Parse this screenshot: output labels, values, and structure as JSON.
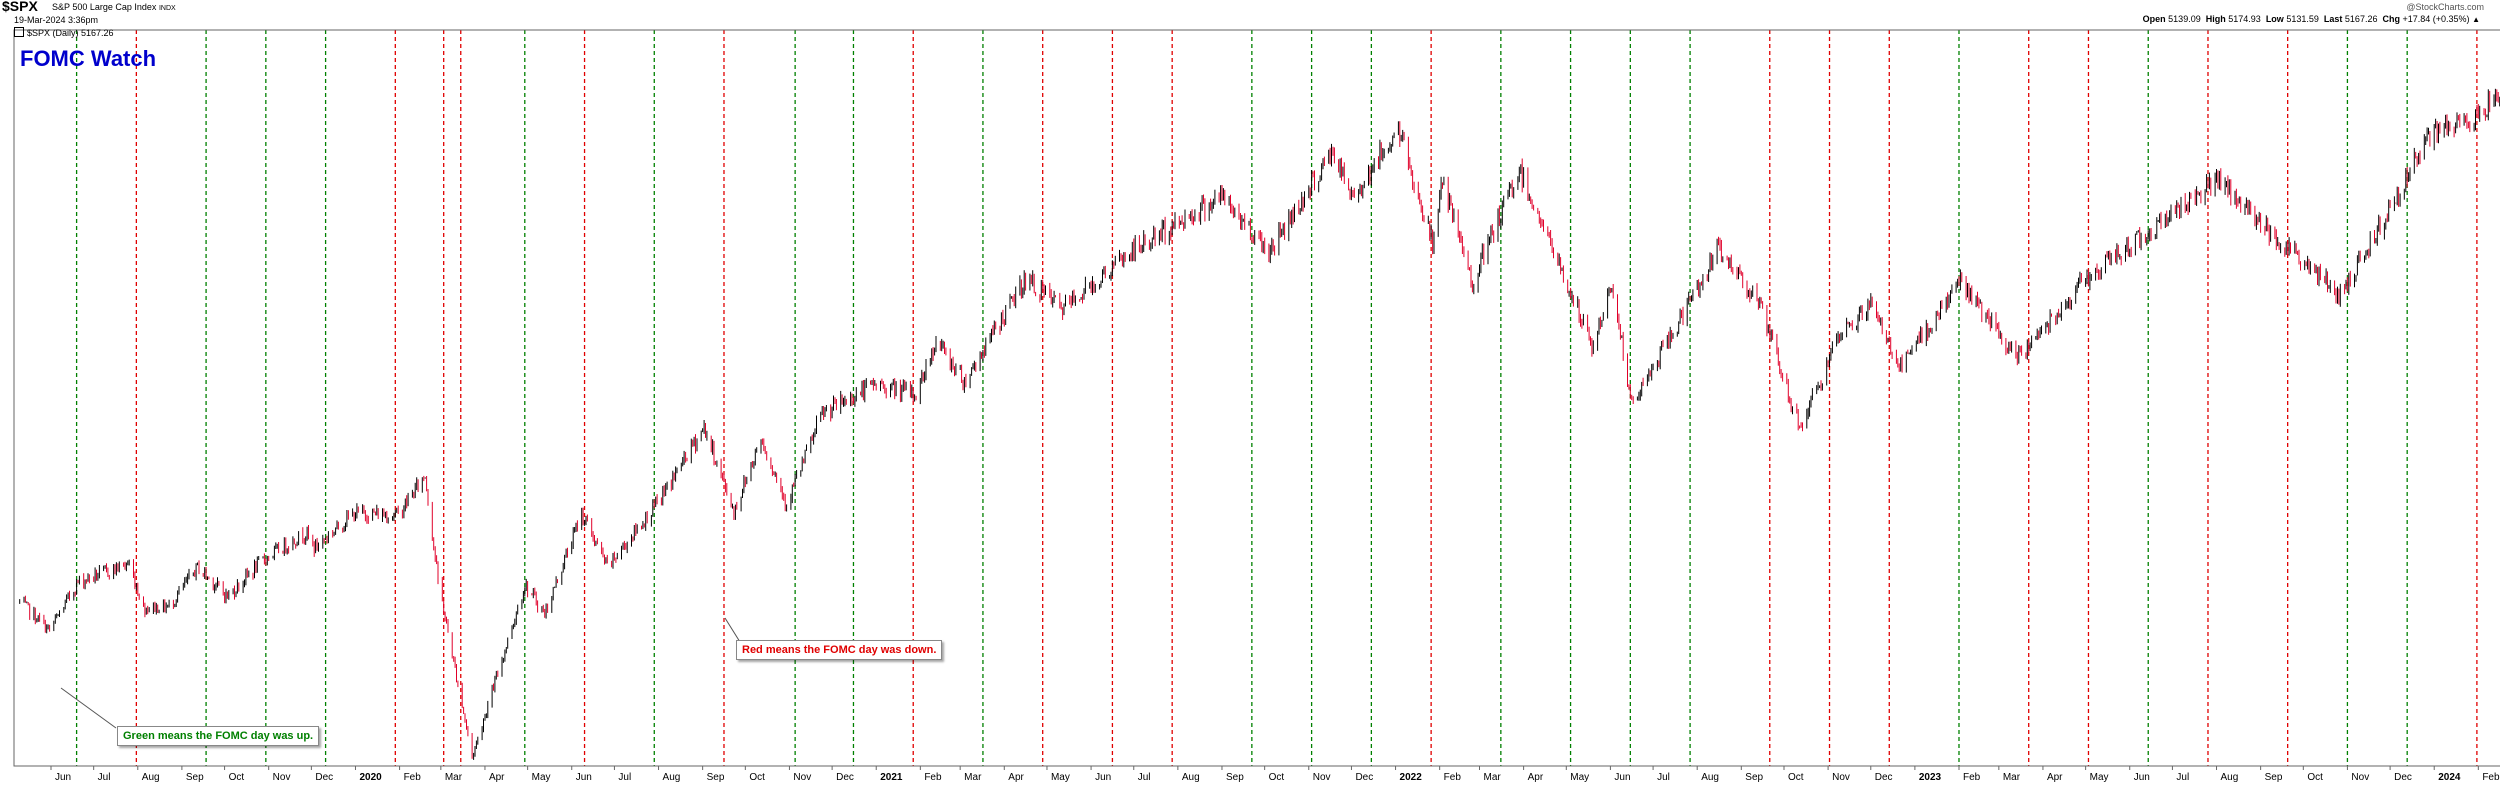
{
  "header": {
    "symbol": "$SPX",
    "name": "S&P 500 Large Cap Index",
    "exchange": "INDX",
    "date": "19-Mar-2024 3:36pm",
    "legend": "$SPX (Daily) 5167.26",
    "watermark": "@StockCharts.com",
    "open_label": "Open",
    "open": "5139.09",
    "high_label": "High",
    "high": "5174.93",
    "low_label": "Low",
    "low": "5131.59",
    "last_label": "Last",
    "last": "5167.26",
    "chg_label": "Chg",
    "chg": "+17.84 (+0.35%)"
  },
  "overlay_title": "FOMC Watch",
  "annotations": {
    "green": "Green means the FOMC day was up.",
    "red": "Red means the FOMC day was down."
  },
  "colors": {
    "up_line": "#008000",
    "down_line": "#e00000",
    "title": "#0000cc",
    "bar_up": "#000000",
    "bar_down": "#e0002a"
  },
  "chart_data": {
    "type": "line",
    "title": "FOMC Watch",
    "series": [
      {
        "name": "$SPX (Daily)",
        "points": [
          [
            "2019-05-10",
            2870
          ],
          [
            "2019-05-31",
            2752
          ],
          [
            "2019-06-20",
            2950
          ],
          [
            "2019-07-26",
            3025
          ],
          [
            "2019-08-05",
            2845
          ],
          [
            "2019-08-23",
            2850
          ],
          [
            "2019-09-12",
            3010
          ],
          [
            "2019-10-03",
            2890
          ],
          [
            "2019-10-28",
            3040
          ],
          [
            "2019-11-27",
            3150
          ],
          [
            "2019-12-03",
            3090
          ],
          [
            "2019-12-31",
            3230
          ],
          [
            "2020-01-31",
            3225
          ],
          [
            "2020-02-19",
            3386
          ],
          [
            "2020-02-28",
            2954
          ],
          [
            "2020-03-23",
            2237
          ],
          [
            "2020-04-29",
            2940
          ],
          [
            "2020-05-13",
            2820
          ],
          [
            "2020-06-08",
            3232
          ],
          [
            "2020-06-26",
            3010
          ],
          [
            "2020-07-31",
            3270
          ],
          [
            "2020-09-02",
            3580
          ],
          [
            "2020-09-23",
            3237
          ],
          [
            "2020-10-12",
            3535
          ],
          [
            "2020-10-30",
            3270
          ],
          [
            "2020-11-24",
            3635
          ],
          [
            "2020-12-31",
            3756
          ],
          [
            "2021-01-29",
            3714
          ],
          [
            "2021-02-12",
            3934
          ],
          [
            "2021-03-04",
            3768
          ],
          [
            "2021-04-16",
            4185
          ],
          [
            "2021-05-12",
            4063
          ],
          [
            "2021-06-30",
            4297
          ],
          [
            "2021-08-31",
            4523
          ],
          [
            "2021-10-04",
            4300
          ],
          [
            "2021-11-18",
            4704
          ],
          [
            "2021-12-01",
            4513
          ],
          [
            "2022-01-03",
            4796
          ],
          [
            "2022-01-27",
            4326
          ],
          [
            "2022-02-02",
            4589
          ],
          [
            "2022-02-24",
            4170
          ],
          [
            "2022-03-29",
            4631
          ],
          [
            "2022-05-20",
            3900
          ],
          [
            "2022-06-02",
            4176
          ],
          [
            "2022-06-16",
            3666
          ],
          [
            "2022-08-16",
            4305
          ],
          [
            "2022-09-12",
            4110
          ],
          [
            "2022-10-12",
            3577
          ],
          [
            "2022-11-10",
            3956
          ],
          [
            "2022-12-01",
            4080
          ],
          [
            "2022-12-22",
            3822
          ],
          [
            "2023-02-02",
            4179
          ],
          [
            "2023-03-13",
            3855
          ],
          [
            "2023-04-28",
            4169
          ],
          [
            "2023-06-30",
            4450
          ],
          [
            "2023-07-31",
            4589
          ],
          [
            "2023-10-27",
            4117
          ],
          [
            "2023-12-29",
            4770
          ],
          [
            "2024-01-31",
            4845
          ],
          [
            "2024-03-19",
            5167
          ]
        ]
      }
    ],
    "ylim": [
      2200,
      5200
    ],
    "ytick_values": [
      2200,
      2300,
      2400,
      2500,
      2600,
      2700,
      2800,
      2900,
      3000,
      3100,
      3200,
      3300,
      3400,
      3500,
      3600,
      3700,
      3800,
      3900,
      4000,
      4100,
      4200,
      4300,
      4400,
      4500,
      4600,
      4700,
      4800,
      4900,
      5000,
      5100,
      5200
    ],
    "xlim": [
      "2019-05-06",
      "2024-03-28"
    ],
    "xticks": [
      {
        "date": "2019-06-01",
        "label": "Jun"
      },
      {
        "date": "2019-07-01",
        "label": "Jul"
      },
      {
        "date": "2019-08-01",
        "label": "Aug"
      },
      {
        "date": "2019-09-01",
        "label": "Sep"
      },
      {
        "date": "2019-10-01",
        "label": "Oct"
      },
      {
        "date": "2019-11-01",
        "label": "Nov"
      },
      {
        "date": "2019-12-01",
        "label": "Dec"
      },
      {
        "date": "2020-01-01",
        "label": "2020",
        "bold": true
      },
      {
        "date": "2020-02-01",
        "label": "Feb"
      },
      {
        "date": "2020-03-01",
        "label": "Mar"
      },
      {
        "date": "2020-04-01",
        "label": "Apr"
      },
      {
        "date": "2020-05-01",
        "label": "May"
      },
      {
        "date": "2020-06-01",
        "label": "Jun"
      },
      {
        "date": "2020-07-01",
        "label": "Jul"
      },
      {
        "date": "2020-08-01",
        "label": "Aug"
      },
      {
        "date": "2020-09-01",
        "label": "Sep"
      },
      {
        "date": "2020-10-01",
        "label": "Oct"
      },
      {
        "date": "2020-11-01",
        "label": "Nov"
      },
      {
        "date": "2020-12-01",
        "label": "Dec"
      },
      {
        "date": "2021-01-01",
        "label": "2021",
        "bold": true
      },
      {
        "date": "2021-02-01",
        "label": "Feb"
      },
      {
        "date": "2021-03-01",
        "label": "Mar"
      },
      {
        "date": "2021-04-01",
        "label": "Apr"
      },
      {
        "date": "2021-05-01",
        "label": "May"
      },
      {
        "date": "2021-06-01",
        "label": "Jun"
      },
      {
        "date": "2021-07-01",
        "label": "Jul"
      },
      {
        "date": "2021-08-01",
        "label": "Aug"
      },
      {
        "date": "2021-09-01",
        "label": "Sep"
      },
      {
        "date": "2021-10-01",
        "label": "Oct"
      },
      {
        "date": "2021-11-01",
        "label": "Nov"
      },
      {
        "date": "2021-12-01",
        "label": "Dec"
      },
      {
        "date": "2022-01-01",
        "label": "2022",
        "bold": true
      },
      {
        "date": "2022-02-01",
        "label": "Feb"
      },
      {
        "date": "2022-03-01",
        "label": "Mar"
      },
      {
        "date": "2022-04-01",
        "label": "Apr"
      },
      {
        "date": "2022-05-01",
        "label": "May"
      },
      {
        "date": "2022-06-01",
        "label": "Jun"
      },
      {
        "date": "2022-07-01",
        "label": "Jul"
      },
      {
        "date": "2022-08-01",
        "label": "Aug"
      },
      {
        "date": "2022-09-01",
        "label": "Sep"
      },
      {
        "date": "2022-10-01",
        "label": "Oct"
      },
      {
        "date": "2022-11-01",
        "label": "Nov"
      },
      {
        "date": "2022-12-01",
        "label": "Dec"
      },
      {
        "date": "2023-01-01",
        "label": "2023",
        "bold": true
      },
      {
        "date": "2023-02-01",
        "label": "Feb"
      },
      {
        "date": "2023-03-01",
        "label": "Mar"
      },
      {
        "date": "2023-04-01",
        "label": "Apr"
      },
      {
        "date": "2023-05-01",
        "label": "May"
      },
      {
        "date": "2023-06-01",
        "label": "Jun"
      },
      {
        "date": "2023-07-01",
        "label": "Jul"
      },
      {
        "date": "2023-08-01",
        "label": "Aug"
      },
      {
        "date": "2023-09-01",
        "label": "Sep"
      },
      {
        "date": "2023-10-01",
        "label": "Oct"
      },
      {
        "date": "2023-11-01",
        "label": "Nov"
      },
      {
        "date": "2023-12-01",
        "label": "Dec"
      },
      {
        "date": "2024-01-01",
        "label": "2024",
        "bold": true
      },
      {
        "date": "2024-02-01",
        "label": "Feb"
      },
      {
        "date": "2024-03-01",
        "label": "Mar"
      }
    ],
    "fomc_days": [
      {
        "date": "2019-06-19",
        "direction": "up"
      },
      {
        "date": "2019-07-31",
        "direction": "down"
      },
      {
        "date": "2019-09-18",
        "direction": "up"
      },
      {
        "date": "2019-10-30",
        "direction": "up"
      },
      {
        "date": "2019-12-11",
        "direction": "up"
      },
      {
        "date": "2020-01-29",
        "direction": "down"
      },
      {
        "date": "2020-03-03",
        "direction": "down"
      },
      {
        "date": "2020-03-15",
        "direction": "down"
      },
      {
        "date": "2020-04-29",
        "direction": "up"
      },
      {
        "date": "2020-06-10",
        "direction": "down"
      },
      {
        "date": "2020-07-29",
        "direction": "up"
      },
      {
        "date": "2020-09-16",
        "direction": "down"
      },
      {
        "date": "2020-11-05",
        "direction": "up"
      },
      {
        "date": "2020-12-16",
        "direction": "up"
      },
      {
        "date": "2021-01-27",
        "direction": "down"
      },
      {
        "date": "2021-03-17",
        "direction": "up"
      },
      {
        "date": "2021-04-28",
        "direction": "down"
      },
      {
        "date": "2021-06-16",
        "direction": "down"
      },
      {
        "date": "2021-07-28",
        "direction": "down"
      },
      {
        "date": "2021-09-22",
        "direction": "up"
      },
      {
        "date": "2021-11-03",
        "direction": "up"
      },
      {
        "date": "2021-12-15",
        "direction": "up"
      },
      {
        "date": "2022-01-26",
        "direction": "down"
      },
      {
        "date": "2022-03-16",
        "direction": "up"
      },
      {
        "date": "2022-05-04",
        "direction": "up"
      },
      {
        "date": "2022-06-15",
        "direction": "up"
      },
      {
        "date": "2022-07-27",
        "direction": "up"
      },
      {
        "date": "2022-09-21",
        "direction": "down"
      },
      {
        "date": "2022-11-02",
        "direction": "down"
      },
      {
        "date": "2022-12-14",
        "direction": "down"
      },
      {
        "date": "2023-02-01",
        "direction": "up"
      },
      {
        "date": "2023-03-22",
        "direction": "down"
      },
      {
        "date": "2023-05-03",
        "direction": "down"
      },
      {
        "date": "2023-06-14",
        "direction": "up"
      },
      {
        "date": "2023-07-26",
        "direction": "down"
      },
      {
        "date": "2023-09-20",
        "direction": "down"
      },
      {
        "date": "2023-11-01",
        "direction": "up"
      },
      {
        "date": "2023-12-13",
        "direction": "up"
      },
      {
        "date": "2024-01-31",
        "direction": "down"
      }
    ]
  }
}
